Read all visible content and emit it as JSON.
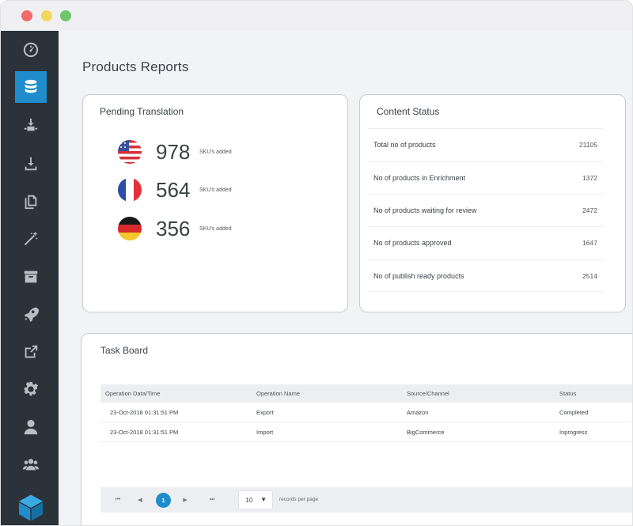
{
  "page": {
    "title": "Products Reports"
  },
  "pending_translation": {
    "title": "Pending Translation",
    "items": [
      {
        "flag": "us-flag-icon",
        "count": "978",
        "label": "SKU's added"
      },
      {
        "flag": "france-flag-icon",
        "count": "564",
        "label": "SKU's added"
      },
      {
        "flag": "germany-flag-icon",
        "count": "356",
        "label": "SKU's added"
      }
    ]
  },
  "content_status": {
    "title": "Content Status",
    "rows": [
      {
        "label": "Total no of products",
        "value": "21105"
      },
      {
        "label": "No of products in Enrichment",
        "value": "1372"
      },
      {
        "label": "No of products waiting for review",
        "value": "2472"
      },
      {
        "label": "No of products approved",
        "value": "1647"
      },
      {
        "label": "No of publish ready products",
        "value": "2514"
      }
    ]
  },
  "task_board": {
    "title": "Task Board",
    "columns": [
      "Operation Data/Time",
      "Operation Name",
      "Source/Channel",
      "Status"
    ],
    "rows": [
      [
        "23-Oct-2018 01:31:51 PM",
        "Export",
        "Amazon",
        "Completed"
      ],
      [
        "23-Oct-2018 01:31:51 PM",
        "Import",
        "BigCommerce",
        "Inprogress"
      ]
    ],
    "pagination": {
      "first": "⏮",
      "prev": "◀",
      "current": "1",
      "next": "▶",
      "last": "⏭",
      "per_page": "10",
      "per_page_label": "records per page"
    }
  },
  "sidebar": {
    "items": [
      "dashboard-gauge-icon",
      "database-icon",
      "import-export-icon",
      "download-icon",
      "copy-icon",
      "magic-wand-icon",
      "archive-icon",
      "rocket-icon",
      "share-icon",
      "settings-gear-icon",
      "user-icon",
      "users-group-icon",
      "cube-logo-icon"
    ],
    "active_color": "#1f8dcb"
  },
  "colors": {
    "accent": "#1f8dcb",
    "sidebar_bg": "#2b323a"
  }
}
